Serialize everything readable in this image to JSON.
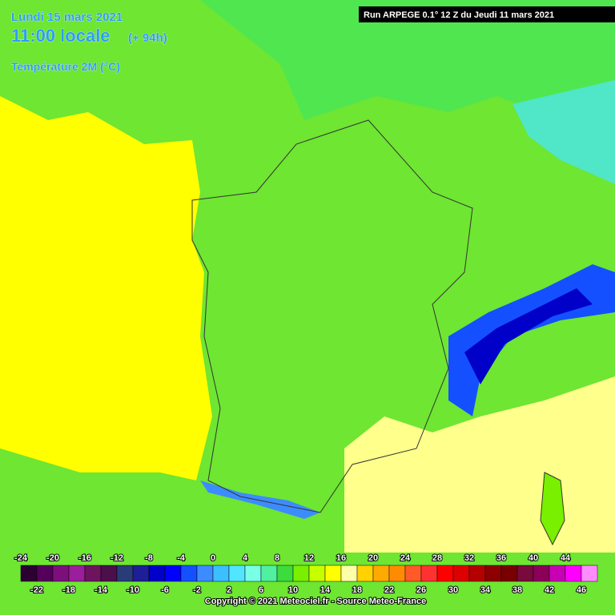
{
  "header": {
    "date": "Lundi 15 mars 2021",
    "time": "11:00 locale",
    "lead": "(+ 94h)",
    "variable": "Température 2M (°C)",
    "run": "Run ARPEGE 0.1° 12 Z du Jeudi 11 mars 2021"
  },
  "legend": {
    "values": [
      -24,
      -22,
      -20,
      -18,
      -16,
      -14,
      -12,
      -10,
      -8,
      -6,
      -4,
      -2,
      0,
      2,
      4,
      6,
      8,
      10,
      12,
      14,
      16,
      18,
      20,
      22,
      24,
      26,
      28,
      30,
      32,
      34,
      36,
      38,
      40,
      42,
      44,
      46
    ],
    "colors": [
      "#2d0032",
      "#55005a",
      "#7d0f7d",
      "#9b1e9b",
      "#6e145f",
      "#4b0f4b",
      "#283c78",
      "#1e1e96",
      "#0000c8",
      "#0000ff",
      "#1450ff",
      "#3c8cff",
      "#3cbeff",
      "#50e6ff",
      "#78ffe6",
      "#50f0a0",
      "#3cdc3c",
      "#78f000",
      "#c8ff00",
      "#ffff00",
      "#ffffaa",
      "#ffd200",
      "#ffaa00",
      "#ff8c00",
      "#ff5a28",
      "#ff3232",
      "#ff0000",
      "#dc0000",
      "#b40000",
      "#8c0000",
      "#780000",
      "#780a3c",
      "#8c005a",
      "#c800b4",
      "#ff00ff",
      "#ff8cff"
    ]
  },
  "copyright": "Copyright © 2021 Meteociel.fr - Source Meteo-France"
}
